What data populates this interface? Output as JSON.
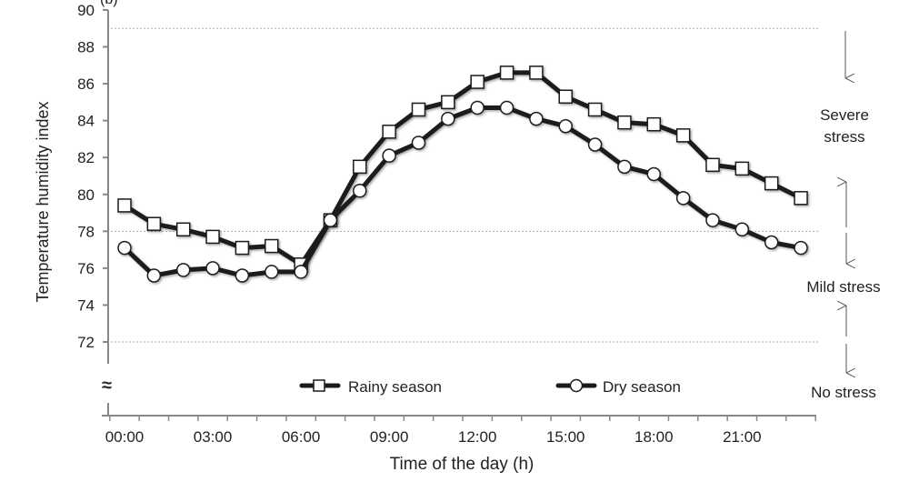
{
  "chart_data": {
    "type": "line",
    "panel_label": "(b)",
    "xlabel": "Time of the day (h)",
    "ylabel": "Temperature humidity index",
    "ylim": [
      72,
      90
    ],
    "y_axis_break": true,
    "y_ticks": [
      72,
      74,
      76,
      78,
      80,
      82,
      84,
      86,
      88,
      90
    ],
    "x_tick_labels": [
      "00:00",
      "03:00",
      "06:00",
      "09:00",
      "12:00",
      "15:00",
      "18:00",
      "21:00"
    ],
    "x": [
      "00:00",
      "01:00",
      "02:00",
      "03:00",
      "04:00",
      "05:00",
      "06:00",
      "07:00",
      "08:00",
      "09:00",
      "10:00",
      "11:00",
      "12:00",
      "13:00",
      "14:00",
      "15:00",
      "16:00",
      "17:00",
      "18:00",
      "19:00",
      "20:00",
      "21:00",
      "22:00",
      "23:00"
    ],
    "series": [
      {
        "name": "Rainy season",
        "marker": "square",
        "values": [
          79.4,
          78.4,
          78.1,
          77.7,
          77.1,
          77.2,
          76.2,
          78.6,
          81.5,
          83.4,
          84.6,
          85.0,
          86.1,
          86.6,
          86.6,
          85.3,
          84.6,
          83.9,
          83.8,
          83.2,
          81.6,
          81.4,
          80.6,
          79.8
        ]
      },
      {
        "name": "Dry season",
        "marker": "circle",
        "values": [
          77.1,
          75.6,
          75.9,
          76.0,
          75.6,
          75.8,
          75.8,
          78.6,
          80.2,
          82.1,
          82.8,
          84.1,
          84.7,
          84.7,
          84.1,
          83.7,
          82.7,
          81.5,
          81.1,
          79.8,
          78.6,
          78.1,
          77.4,
          77.1
        ]
      }
    ],
    "threshold_lines": [
      89,
      78,
      72
    ],
    "zones": [
      {
        "label_lines": [
          "Severe",
          "stress"
        ]
      },
      {
        "label_lines": [
          "Mild stress"
        ]
      },
      {
        "label_lines": [
          "No stress"
        ]
      }
    ],
    "grid": false,
    "legend_placement": "bottom-center",
    "colors": {
      "line": "#1a1a1a",
      "marker_fill": "#ffffff",
      "threshold": "#aaaaaa",
      "axis": "#888888"
    }
  }
}
